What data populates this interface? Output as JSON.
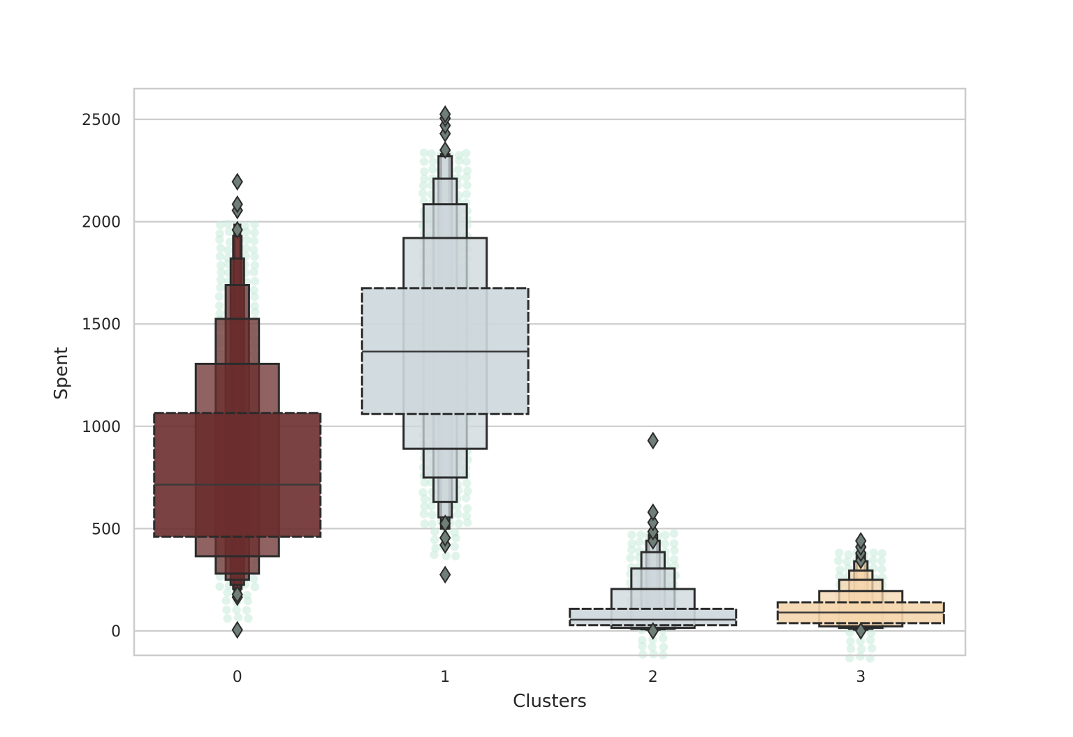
{
  "chart_data": {
    "type": "boxen",
    "title": "",
    "xlabel": "Clusters",
    "ylabel": "Spent",
    "ylim": [
      -120,
      2650
    ],
    "yticks": [
      0,
      500,
      1000,
      1500,
      2000,
      2500
    ],
    "categories": [
      "0",
      "1",
      "2",
      "3"
    ],
    "grid": "horizontal",
    "swarm_color": "#c9ebdd",
    "groups": [
      {
        "category": "0",
        "color": "#6b2e2e",
        "median": 715,
        "boxes": [
          [
            460,
            1065
          ],
          [
            365,
            1305
          ],
          [
            280,
            1525
          ],
          [
            250,
            1690
          ],
          [
            225,
            1820
          ],
          [
            205,
            1930
          ],
          [
            192,
            1985
          ]
        ],
        "outliers": [
          5,
          165,
          178,
          1960,
          2055,
          2085,
          2195
        ]
      },
      {
        "category": "1",
        "color": "#cdd7db",
        "median": 1365,
        "boxes": [
          [
            1060,
            1675
          ],
          [
            890,
            1920
          ],
          [
            750,
            2085
          ],
          [
            630,
            2210
          ],
          [
            555,
            2320
          ],
          [
            500,
            2330
          ]
        ],
        "outliers": [
          275,
          420,
          455,
          525,
          2350,
          2430,
          2470,
          2505,
          2525
        ]
      },
      {
        "category": "2",
        "color": "#cdd7db",
        "median": 55,
        "boxes": [
          [
            28,
            108
          ],
          [
            15,
            205
          ],
          [
            10,
            305
          ],
          [
            8,
            385
          ],
          [
            6,
            440
          ],
          [
            5,
            470
          ]
        ],
        "outliers": [
          0,
          440,
          485,
          530,
          580,
          930
        ]
      },
      {
        "category": "3",
        "color": "#f5d6ad",
        "median": 90,
        "boxes": [
          [
            38,
            140
          ],
          [
            22,
            195
          ],
          [
            15,
            250
          ],
          [
            10,
            295
          ],
          [
            6,
            340
          ],
          [
            5,
            380
          ]
        ],
        "outliers": [
          0,
          345,
          380,
          410,
          440
        ]
      }
    ]
  }
}
